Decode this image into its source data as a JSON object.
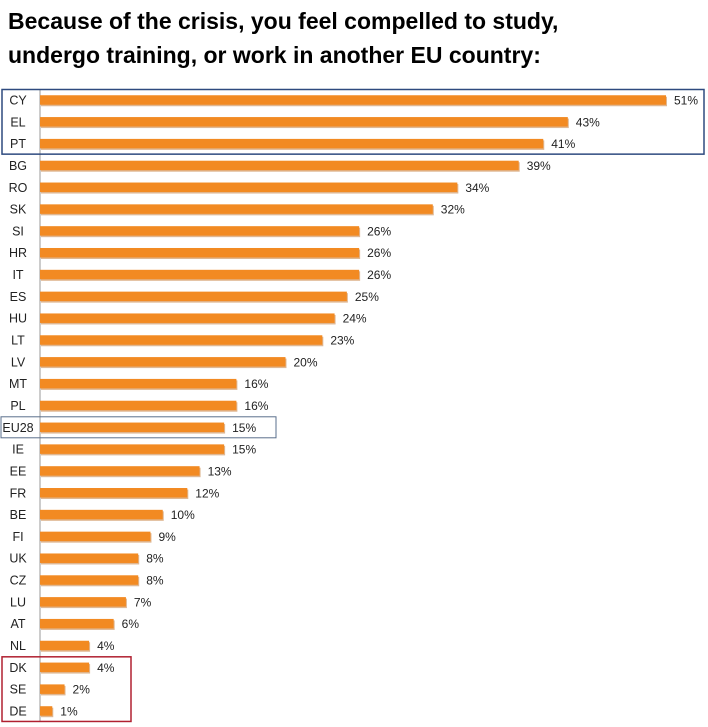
{
  "chart_data": {
    "type": "bar",
    "orientation": "horizontal",
    "title_lines": [
      "Because of the crisis, you feel compelled to study,",
      "undergo training, or work in another EU country:"
    ],
    "categories": [
      "CY",
      "EL",
      "PT",
      "BG",
      "RO",
      "SK",
      "SI",
      "HR",
      "IT",
      "ES",
      "HU",
      "LT",
      "LV",
      "MT",
      "PL",
      "EU28",
      "IE",
      "EE",
      "FR",
      "BE",
      "FI",
      "UK",
      "CZ",
      "LU",
      "AT",
      "NL",
      "DK",
      "SE",
      "DE"
    ],
    "values": [
      51,
      43,
      41,
      39,
      34,
      32,
      26,
      26,
      26,
      25,
      24,
      23,
      20,
      16,
      16,
      15,
      15,
      13,
      12,
      10,
      9,
      8,
      8,
      7,
      6,
      4,
      4,
      2,
      1
    ],
    "value_suffix": "%",
    "xlim": [
      0,
      51
    ],
    "colors": {
      "bar": "#F28A22",
      "bar_shadow": "#B85F0E",
      "highlight_top": "#2E4A7F",
      "highlight_eu": "#5A6F8C",
      "highlight_bottom": "#B02030"
    },
    "highlight_groups": [
      {
        "name": "top",
        "categories": [
          "CY",
          "EL",
          "PT"
        ]
      },
      {
        "name": "eu",
        "categories": [
          "EU28"
        ]
      },
      {
        "name": "bottom",
        "categories": [
          "DK",
          "SE",
          "DE"
        ]
      }
    ],
    "grid": false,
    "legend": "none"
  }
}
